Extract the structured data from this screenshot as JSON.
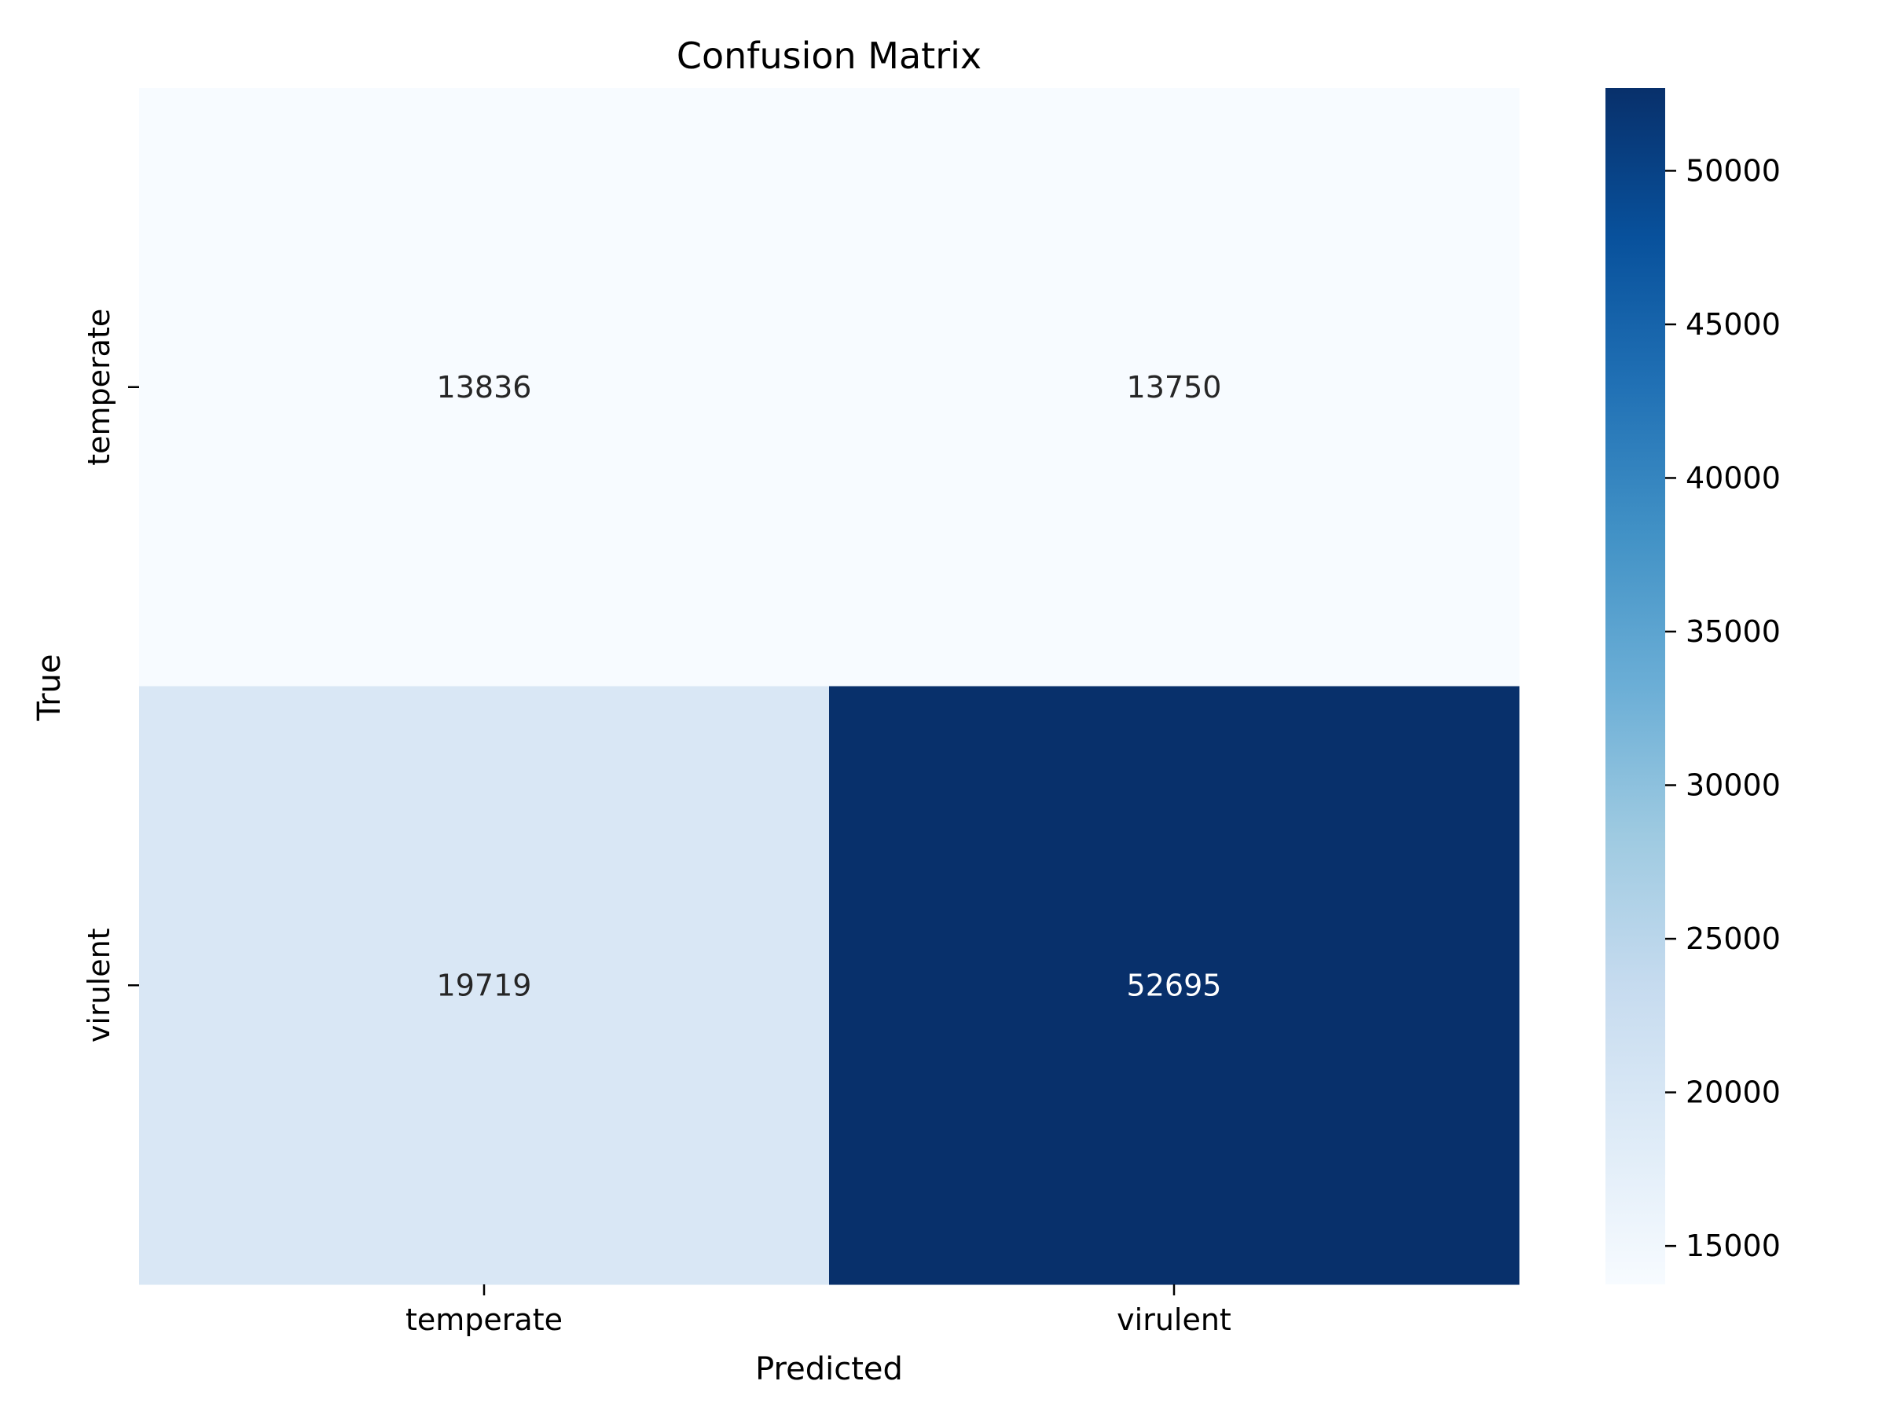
{
  "chart_data": {
    "type": "heatmap",
    "title": "Confusion Matrix",
    "xlabel": "Predicted",
    "ylabel": "True",
    "x_categories": [
      "temperate",
      "virulent"
    ],
    "y_categories": [
      "temperate",
      "virulent"
    ],
    "values": [
      [
        13836,
        13750
      ],
      [
        19719,
        52695
      ]
    ],
    "colormap": "Blues",
    "color_range": [
      13750,
      52695
    ],
    "colorbar_ticks": [
      15000,
      20000,
      25000,
      30000,
      35000,
      40000,
      45000,
      50000
    ],
    "annotation_colors": {
      "light": "#262626",
      "dark": "#ffffff"
    }
  }
}
